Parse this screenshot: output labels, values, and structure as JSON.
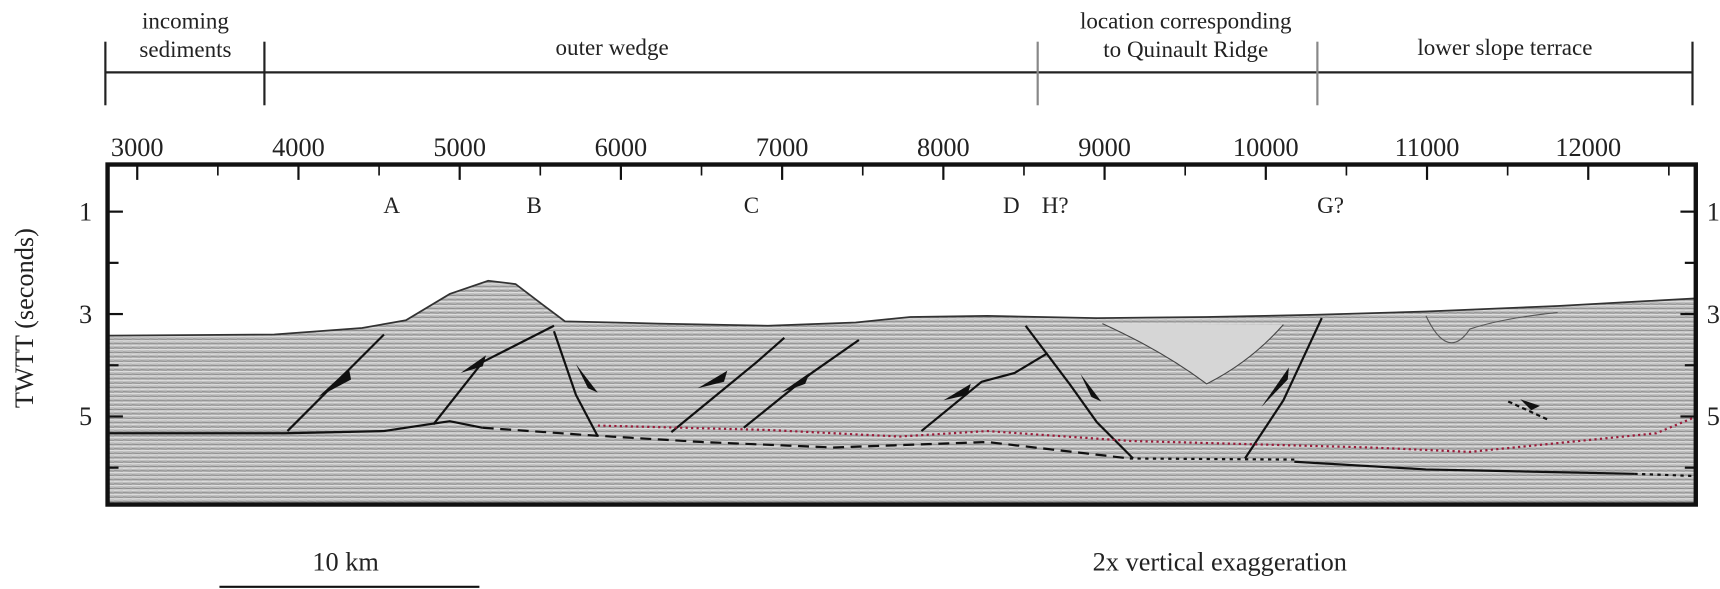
{
  "regions": [
    {
      "lines": [
        "incoming",
        "sediments"
      ]
    },
    {
      "lines": [
        "outer wedge"
      ]
    },
    {
      "lines": [
        "location corresponding",
        "to Quinault Ridge"
      ]
    },
    {
      "lines": [
        "lower slope terrace"
      ]
    }
  ],
  "top_axis": {
    "ticks": [
      3000,
      4000,
      5000,
      6000,
      7000,
      8000,
      9000,
      10000,
      11000,
      12000
    ],
    "minor_ticks": [
      3500,
      4500,
      5500,
      6500,
      7500,
      8500,
      9500,
      10500,
      11500,
      12500
    ],
    "lim": [
      2816,
      12667
    ]
  },
  "y_axis": {
    "label": "TWTT (seconds)",
    "ticks": [
      1,
      3,
      5
    ],
    "minor_ticks": [
      2,
      4,
      6
    ],
    "lim": [
      0.08,
      6.72
    ]
  },
  "fault_labels": [
    "A",
    "B",
    "C",
    "D",
    "H?",
    "G?"
  ],
  "scale_bar": "10 km",
  "note": "2x vertical exaggeration"
}
